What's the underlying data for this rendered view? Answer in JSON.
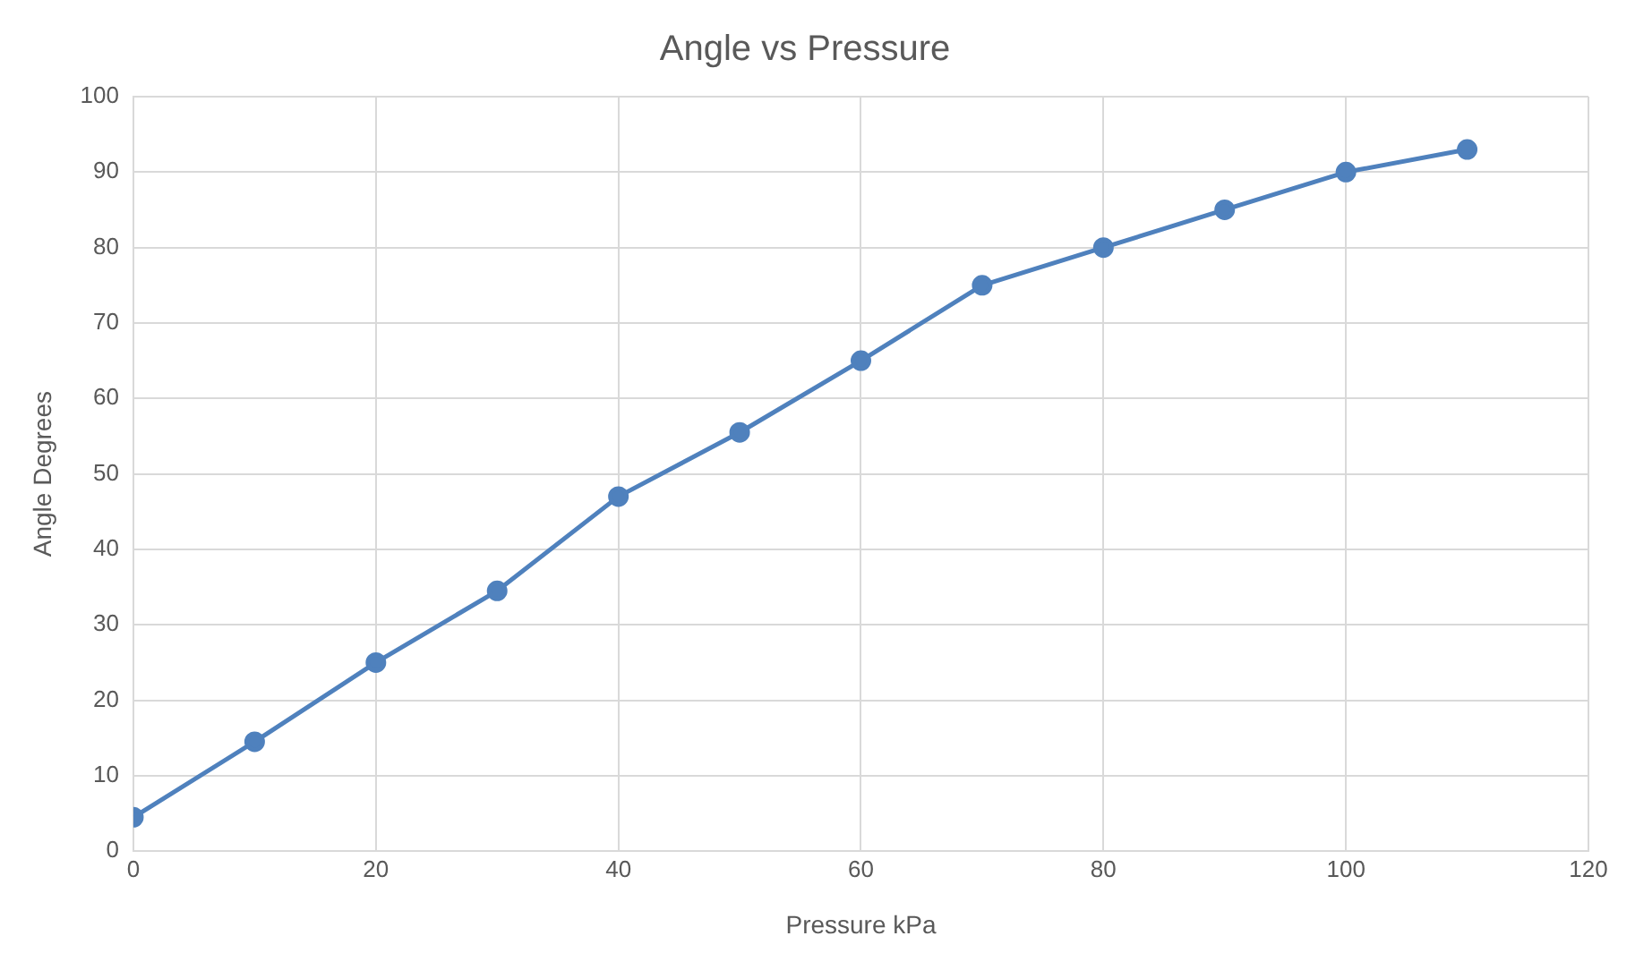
{
  "chart_data": {
    "type": "line",
    "title": "Angle vs Pressure",
    "xlabel": "Pressure kPa",
    "ylabel": "Angle Degrees",
    "x": [
      0,
      10,
      20,
      30,
      40,
      50,
      60,
      70,
      80,
      90,
      100,
      110
    ],
    "series": [
      {
        "color": "#4f81bd",
        "values": [
          4.5,
          14.5,
          25,
          34.5,
          47,
          55.5,
          65,
          75,
          80,
          85,
          90,
          93
        ]
      }
    ],
    "xlim": [
      0,
      120
    ],
    "xticks": [
      0,
      20,
      40,
      60,
      80,
      100,
      120
    ],
    "ylim": [
      0,
      100
    ],
    "yticks": [
      0,
      10,
      20,
      30,
      40,
      50,
      60,
      70,
      80,
      90,
      100
    ],
    "grid": true,
    "marker": "circle",
    "legend": false
  }
}
